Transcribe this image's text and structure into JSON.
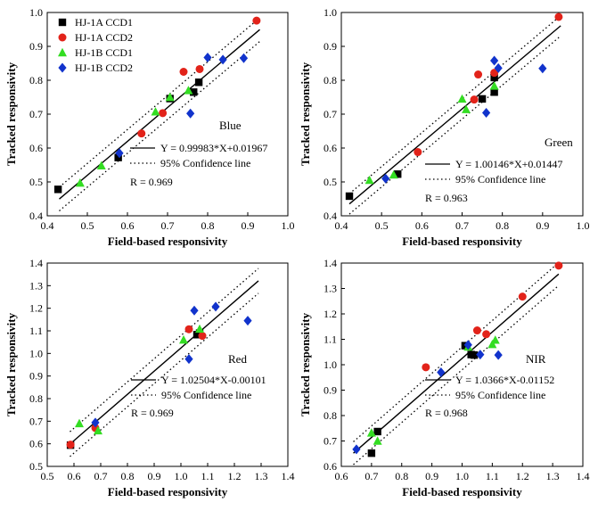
{
  "chart_data": [
    {
      "type": "scatter",
      "band": "Blue",
      "xlabel": "Field-based responsivity",
      "ylabel": "Tracked responsivity",
      "xlim": [
        0.4,
        1.0
      ],
      "ylim": [
        0.4,
        1.0
      ],
      "xticks": [
        "0.4",
        "0.5",
        "0.6",
        "0.7",
        "0.8",
        "0.9",
        "1.0"
      ],
      "yticks": [
        "0.4",
        "0.5",
        "0.6",
        "0.7",
        "0.8",
        "0.9",
        "1.0"
      ],
      "fit": {
        "slope": 0.99983,
        "intercept": 0.01967,
        "x_range": [
          0.43,
          0.93
        ],
        "ci_offset": 0.035
      },
      "equation": "Y = 0.99983*X+0.01967",
      "ci_label": "95% Confidence line",
      "r_label": "R = 0.969",
      "legend": [
        "HJ-1A CCD1",
        "HJ-1A CCD2",
        "HJ-1B CCD1",
        "HJ-1B CCD2"
      ],
      "series": [
        {
          "name": "HJ-1A CCD1",
          "points": [
            [
              0.427,
              0.478
            ],
            [
              0.577,
              0.572
            ],
            [
              0.706,
              0.746
            ],
            [
              0.765,
              0.765
            ],
            [
              0.778,
              0.794
            ]
          ]
        },
        {
          "name": "HJ-1A CCD2",
          "points": [
            [
              0.922,
              0.976
            ],
            [
              0.74,
              0.825
            ],
            [
              0.78,
              0.833
            ],
            [
              0.688,
              0.703
            ],
            [
              0.635,
              0.643
            ]
          ]
        },
        {
          "name": "HJ-1B CCD1",
          "points": [
            [
              0.482,
              0.497
            ],
            [
              0.535,
              0.548
            ],
            [
              0.67,
              0.707
            ],
            [
              0.706,
              0.75
            ],
            [
              0.752,
              0.77
            ]
          ]
        },
        {
          "name": "HJ-1B CCD2",
          "points": [
            [
              0.58,
              0.585
            ],
            [
              0.757,
              0.702
            ],
            [
              0.8,
              0.867
            ],
            [
              0.838,
              0.861
            ],
            [
              0.89,
              0.865
            ]
          ]
        }
      ]
    },
    {
      "type": "scatter",
      "band": "Green",
      "xlabel": "Field-based responsivity",
      "ylabel": "Tracked responsivity",
      "xlim": [
        0.4,
        1.0
      ],
      "ylim": [
        0.4,
        1.0
      ],
      "xticks": [
        "0.4",
        "0.5",
        "0.6",
        "0.7",
        "0.8",
        "0.9",
        "1.0"
      ],
      "yticks": [
        "0.4",
        "0.5",
        "0.6",
        "0.7",
        "0.8",
        "0.9",
        "1.0"
      ],
      "fit": {
        "slope": 1.00146,
        "intercept": 0.01447,
        "x_range": [
          0.42,
          0.945
        ],
        "ci_offset": 0.03
      },
      "equation": "Y = 1.00146*X+0.01447",
      "ci_label": "95% Confidence line",
      "r_label": "R = 0.963",
      "series": [
        {
          "name": "HJ-1A CCD1",
          "points": [
            [
              0.42,
              0.458
            ],
            [
              0.54,
              0.523
            ],
            [
              0.75,
              0.745
            ],
            [
              0.78,
              0.765
            ],
            [
              0.78,
              0.808
            ]
          ]
        },
        {
          "name": "HJ-1A CCD2",
          "points": [
            [
              0.94,
              0.987
            ],
            [
              0.74,
              0.817
            ],
            [
              0.59,
              0.588
            ],
            [
              0.73,
              0.743
            ],
            [
              0.78,
              0.822
            ]
          ]
        },
        {
          "name": "HJ-1B CCD1",
          "points": [
            [
              0.47,
              0.505
            ],
            [
              0.53,
              0.521
            ],
            [
              0.7,
              0.745
            ],
            [
              0.71,
              0.714
            ],
            [
              0.78,
              0.783
            ]
          ]
        },
        {
          "name": "HJ-1B CCD2",
          "points": [
            [
              0.51,
              0.51
            ],
            [
              0.76,
              0.704
            ],
            [
              0.78,
              0.858
            ],
            [
              0.79,
              0.836
            ],
            [
              0.9,
              0.835
            ]
          ]
        }
      ]
    },
    {
      "type": "scatter",
      "band": "Red",
      "xlabel": "Field-based responsivity",
      "ylabel": "Tracked responsivity",
      "xlim": [
        0.5,
        1.4
      ],
      "ylim": [
        0.5,
        1.4
      ],
      "xticks": [
        "0.5",
        "0.6",
        "0.7",
        "0.8",
        "0.9",
        "1.0",
        "1.1",
        "1.2",
        "1.3",
        "1.4"
      ],
      "yticks": [
        "0.5",
        "0.6",
        "0.7",
        "0.8",
        "0.9",
        "1.0",
        "1.1",
        "1.2",
        "1.3",
        "1.4"
      ],
      "fit": {
        "slope": 1.02504,
        "intercept": -0.00101,
        "x_range": [
          0.585,
          1.29
        ],
        "ci_offset": 0.055
      },
      "equation": "Y = 1.02504*X-0.00101",
      "ci_label": "95% Confidence line",
      "r_label": "R = 0.969",
      "series": [
        {
          "name": "HJ-1A CCD1",
          "points": [
            [
              0.587,
              0.594
            ],
            [
              1.06,
              1.083
            ],
            [
              1.07,
              1.09
            ]
          ]
        },
        {
          "name": "HJ-1A CCD2",
          "points": [
            [
              0.587,
              0.596
            ],
            [
              1.03,
              1.107
            ],
            [
              1.08,
              1.078
            ],
            [
              0.68,
              0.67
            ]
          ]
        },
        {
          "name": "HJ-1B CCD1",
          "points": [
            [
              0.62,
              0.69
            ],
            [
              0.69,
              0.658
            ],
            [
              1.01,
              1.06
            ],
            [
              1.07,
              1.108
            ]
          ]
        },
        {
          "name": "HJ-1B CCD2",
          "points": [
            [
              0.68,
              0.694
            ],
            [
              1.03,
              0.975
            ],
            [
              1.05,
              1.19
            ],
            [
              1.13,
              1.207
            ],
            [
              1.25,
              1.145
            ]
          ]
        }
      ]
    },
    {
      "type": "scatter",
      "band": "NIR",
      "xlabel": "Field-based responsivity",
      "ylabel": "Tracked responsivity",
      "xlim": [
        0.6,
        1.4
      ],
      "ylim": [
        0.6,
        1.4
      ],
      "xticks": [
        "0.6",
        "0.7",
        "0.8",
        "0.9",
        "1.0",
        "1.1",
        "1.2",
        "1.3",
        "1.4"
      ],
      "yticks": [
        "0.6",
        "0.7",
        "0.8",
        "0.9",
        "1.0",
        "1.1",
        "1.2",
        "1.3",
        "1.4"
      ],
      "fit": {
        "slope": 1.0366,
        "intercept": -0.01152,
        "x_range": [
          0.64,
          1.32
        ],
        "ci_offset": 0.045
      },
      "equation": "Y = 1.0366*X-0.01152",
      "ci_label": "95% Confidence line",
      "r_label": "R = 0.968",
      "series": [
        {
          "name": "HJ-1A CCD1",
          "points": [
            [
              0.7,
              0.652
            ],
            [
              0.72,
              0.737
            ],
            [
              1.01,
              1.075
            ],
            [
              1.03,
              1.04
            ],
            [
              1.04,
              1.038
            ]
          ]
        },
        {
          "name": "HJ-1A CCD2",
          "points": [
            [
              0.88,
              0.99
            ],
            [
              1.05,
              1.135
            ],
            [
              1.08,
              1.12
            ],
            [
              1.2,
              1.268
            ],
            [
              1.32,
              1.39
            ]
          ]
        },
        {
          "name": "HJ-1B CCD1",
          "points": [
            [
              0.7,
              0.732
            ],
            [
              0.72,
              0.7
            ],
            [
              1.02,
              1.07
            ],
            [
              1.1,
              1.08
            ],
            [
              1.11,
              1.097
            ]
          ]
        },
        {
          "name": "HJ-1B CCD2",
          "points": [
            [
              0.65,
              0.667
            ],
            [
              0.93,
              0.97
            ],
            [
              1.02,
              1.078
            ],
            [
              1.06,
              1.04
            ],
            [
              1.12,
              1.038
            ]
          ]
        }
      ]
    }
  ],
  "colors": {
    "HJ-1A CCD1": "#000000",
    "HJ-1A CCD2": "#e2231a",
    "HJ-1B CCD1": "#33dd22",
    "HJ-1B CCD2": "#1133cc"
  },
  "markers": {
    "HJ-1A CCD1": "square",
    "HJ-1A CCD2": "circle",
    "HJ-1B CCD1": "triangle-up",
    "HJ-1B CCD2": "diamond"
  }
}
